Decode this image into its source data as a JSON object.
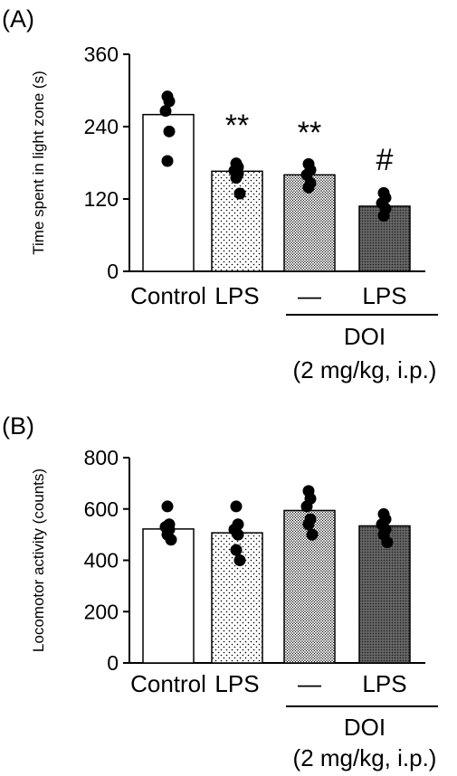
{
  "colors": {
    "background": "#ffffff",
    "axis": "#000000",
    "bar_outline": "#000000",
    "dots": "#000000"
  },
  "chart_data": [
    {
      "type": "bar",
      "panel_label": "(A)",
      "ylabel": "Time spent in light zone (s)",
      "ylim": [
        0,
        360
      ],
      "yticks": [
        "0",
        "120",
        "240",
        "360"
      ],
      "categories": [
        "Control",
        "LPS",
        "—",
        "LPS"
      ],
      "group_label_lines": [
        "DOI",
        "(2 mg/kg, i.p.)"
      ],
      "fills": [
        "white",
        "light-dots",
        "dense-dots",
        "dark-crosshatch"
      ],
      "values": [
        260,
        166,
        160,
        108
      ],
      "points": [
        [
          290,
          282,
          266,
          232,
          183
        ],
        [
          179,
          173,
          167,
          162,
          155,
          129
        ],
        [
          178,
          168,
          160,
          146,
          139
        ],
        [
          130,
          122,
          113,
          104,
          92
        ]
      ],
      "significance": [
        "",
        "**",
        "**",
        "#"
      ]
    },
    {
      "type": "bar",
      "panel_label": "(B)",
      "ylabel": "Locomotor activity (counts)",
      "ylim": [
        0,
        800
      ],
      "yticks": [
        "0",
        "200",
        "400",
        "600",
        "800"
      ],
      "categories": [
        "Control",
        "LPS",
        "—",
        "LPS"
      ],
      "group_label_lines": [
        "DOI",
        "(2 mg/kg, i.p.)"
      ],
      "fills": [
        "white",
        "light-dots",
        "dense-dots",
        "dark-crosshatch"
      ],
      "values": [
        522,
        507,
        594,
        534
      ],
      "points": [
        [
          610,
          540,
          530,
          520,
          500,
          480
        ],
        [
          610,
          540,
          520,
          500,
          440,
          400
        ],
        [
          670,
          640,
          610,
          560,
          540,
          500
        ],
        [
          580,
          560,
          540,
          520,
          500,
          470
        ]
      ],
      "significance": [
        "",
        "",
        "",
        ""
      ]
    }
  ]
}
